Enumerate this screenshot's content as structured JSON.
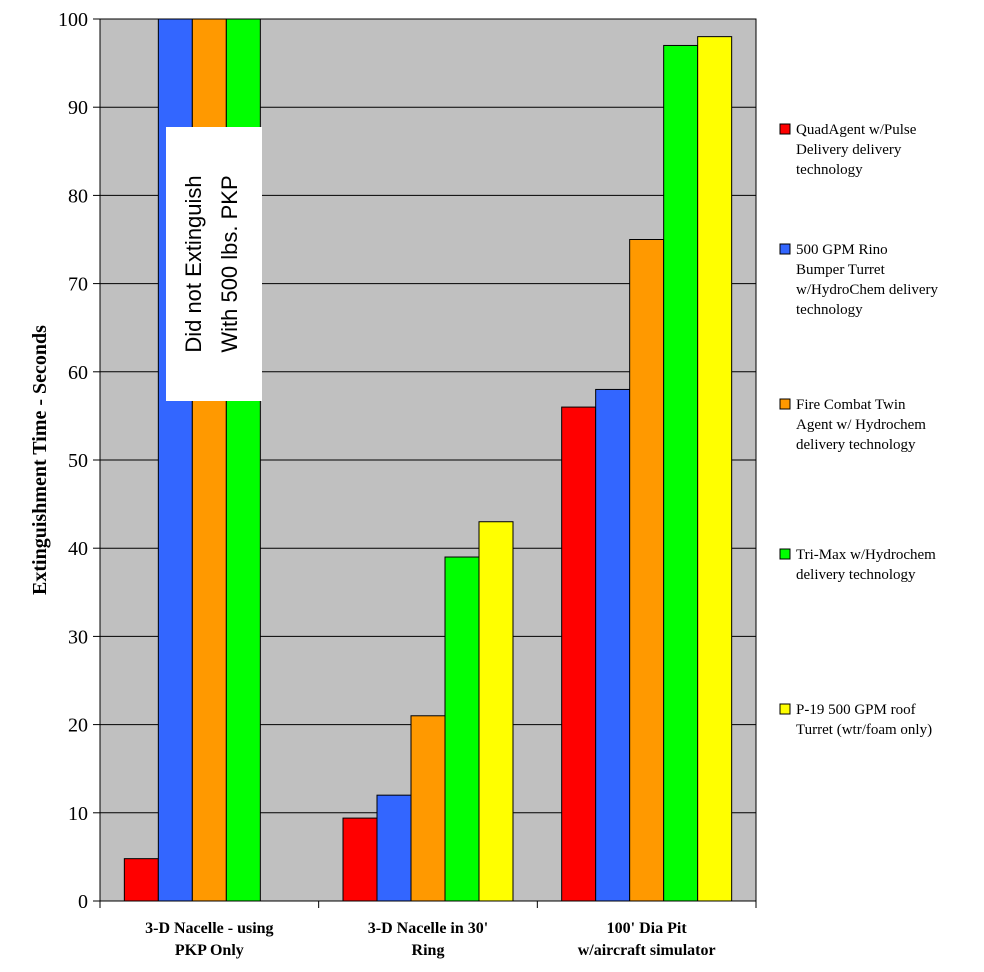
{
  "chart_data": {
    "type": "bar",
    "title": "",
    "ylabel": "Extinguishment Time - Seconds",
    "xlabel": "",
    "ylim": [
      0,
      100
    ],
    "yticks": [
      0,
      10,
      20,
      30,
      40,
      50,
      60,
      70,
      80,
      90,
      100
    ],
    "grid": true,
    "legend_position": "right",
    "categories": [
      [
        "3-D Nacelle - using",
        "PKP Only"
      ],
      [
        "3-D Nacelle in 30'",
        "Ring"
      ],
      [
        "100' Dia Pit",
        "w/aircraft simulator"
      ]
    ],
    "series": [
      {
        "name": "QuadAgent w/Pulse Delivery delivery technology",
        "legend_lines": [
          "QuadAgent w/Pulse",
          "Delivery delivery",
          "technology"
        ],
        "color": "#ff0000",
        "values": [
          4.8,
          9.4,
          56
        ]
      },
      {
        "name": "500 GPM Rino Bumper Turret w/HydroChem delivery technology",
        "legend_lines": [
          "500 GPM Rino",
          "Bumper Turret",
          "w/HydroChem delivery",
          "technology"
        ],
        "color": "#3366ff",
        "values": [
          100,
          12,
          58
        ]
      },
      {
        "name": "Fire Combat Twin Agent w/ Hydrochem delivery technology",
        "legend_lines": [
          "Fire Combat Twin",
          "Agent w/ Hydrochem",
          "delivery technology"
        ],
        "color": "#ff9900",
        "values": [
          100,
          21,
          75
        ]
      },
      {
        "name": "Tri-Max w/Hydrochem delivery technology",
        "legend_lines": [
          "Tri-Max w/Hydrochem",
          "delivery technology"
        ],
        "color": "#00ff00",
        "values": [
          100,
          39,
          97
        ]
      },
      {
        "name": "P-19 500 GPM roof Turret (wtr/foam only)",
        "legend_lines": [
          "P-19 500 GPM roof",
          "Turret (wtr/foam only)"
        ],
        "color": "#ffff00",
        "values": [
          null,
          43,
          98
        ]
      }
    ],
    "annotation": {
      "lines": [
        "Did not Extinguish",
        "With 500 lbs. PKP"
      ]
    }
  }
}
